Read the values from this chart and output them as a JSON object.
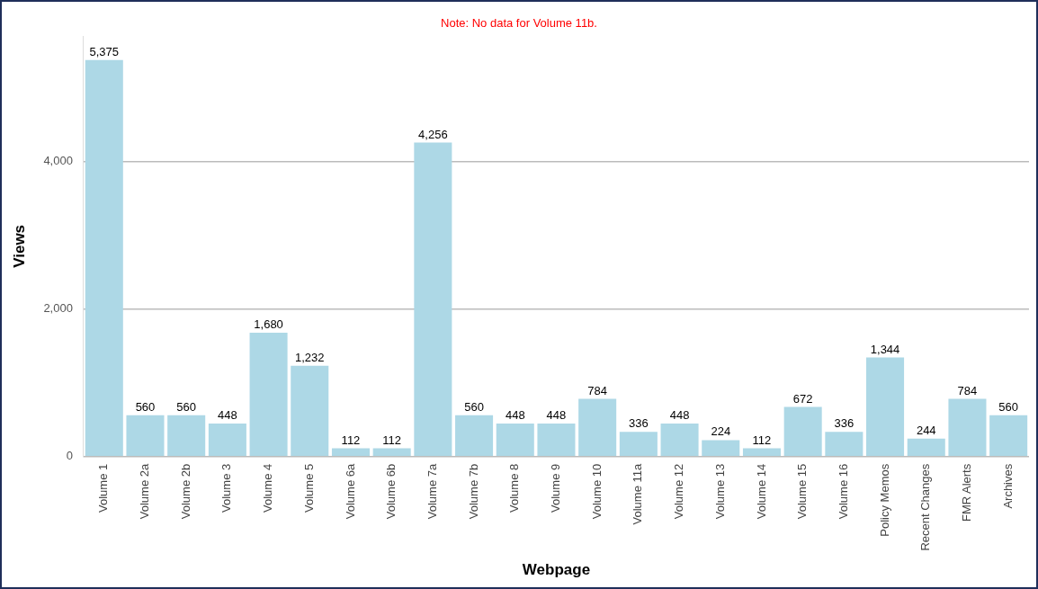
{
  "chart_data": {
    "type": "bar",
    "xlabel": "Webpage",
    "ylabel": "Views",
    "categories": [
      "Volume 1",
      "Volume 2a",
      "Volume 2b",
      "Volume 3",
      "Volume 4",
      "Volume 5",
      "Volume 6a",
      "Volume 6b",
      "Volume 7a",
      "Volume 7b",
      "Volume 8",
      "Volume 9",
      "Volume 10",
      "Volume 11a",
      "Volume 12",
      "Volume 13",
      "Volume 14",
      "Volume 15",
      "Volume 16",
      "Policy Memos",
      "Recent Changes",
      "FMR Alerts",
      "Archives"
    ],
    "series": [
      {
        "color": "#add8e6",
        "values": [
          5375,
          560,
          560,
          448,
          1680,
          1232,
          112,
          112,
          4256,
          560,
          448,
          448,
          784,
          336,
          448,
          224,
          112,
          672,
          336,
          1344,
          244,
          784,
          560
        ]
      }
    ],
    "ylim": [
      0,
      5700
    ],
    "yticks": [
      {
        "value": 0,
        "label": "0"
      },
      {
        "value": 2000,
        "label": "2,000"
      },
      {
        "value": 4000,
        "label": "4,000"
      }
    ],
    "value_labels": [
      "5,375",
      "560",
      "560",
      "448",
      "1,680",
      "1,232",
      "112",
      "112",
      "4,256",
      "560",
      "448",
      "448",
      "784",
      "336",
      "448",
      "224",
      "112",
      "672",
      "336",
      "1,344",
      "244",
      "784",
      "560"
    ],
    "grid": "y",
    "legend": false,
    "annotations": [
      "Note: No data for Volume 11b."
    ]
  }
}
